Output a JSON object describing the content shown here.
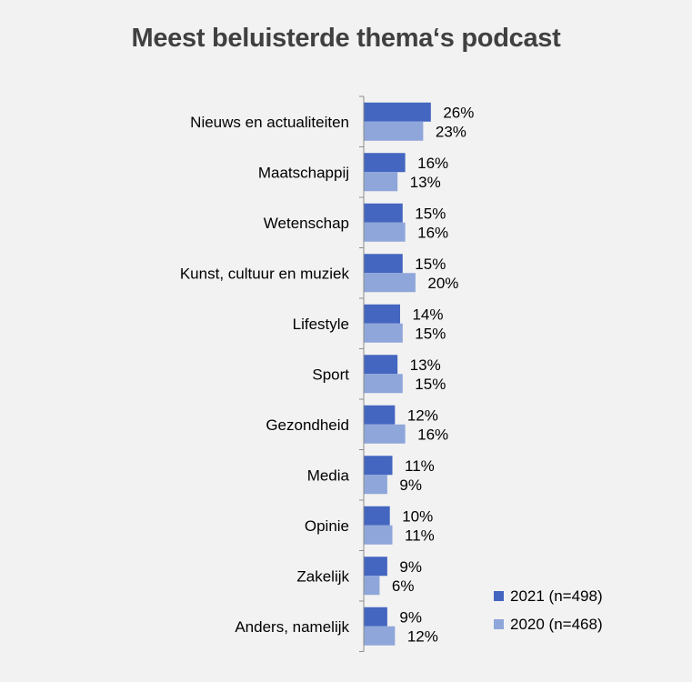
{
  "chart_data": {
    "type": "bar",
    "orientation": "horizontal",
    "title": "Meest beluisterde thema‘s podcast",
    "categories": [
      "Nieuws en actualiteiten",
      "Maatschappij",
      "Wetenschap",
      "Kunst, cultuur en muziek",
      "Lifestyle",
      "Sport",
      "Gezondheid",
      "Media",
      "Opinie",
      "Zakelijk",
      "Anders, namelijk"
    ],
    "series": [
      {
        "name": "2021 (n=498)",
        "color": "#4466c0",
        "values": [
          26,
          16,
          15,
          15,
          14,
          13,
          12,
          11,
          10,
          9,
          9
        ],
        "labels": [
          "26%",
          "16%",
          "15%",
          "15%",
          "14%",
          "13%",
          "12%",
          "11%",
          "10%",
          "9%",
          "9%"
        ]
      },
      {
        "name": "2020 (n=468)",
        "color": "#8ea6d9",
        "values": [
          23,
          13,
          16,
          20,
          15,
          15,
          16,
          9,
          11,
          6,
          12
        ],
        "labels": [
          "23%",
          "13%",
          "16%",
          "20%",
          "15%",
          "15%",
          "16%",
          "9%",
          "11%",
          "6%",
          "12%"
        ]
      }
    ],
    "legend_position": "bottom-right",
    "grid": false
  }
}
